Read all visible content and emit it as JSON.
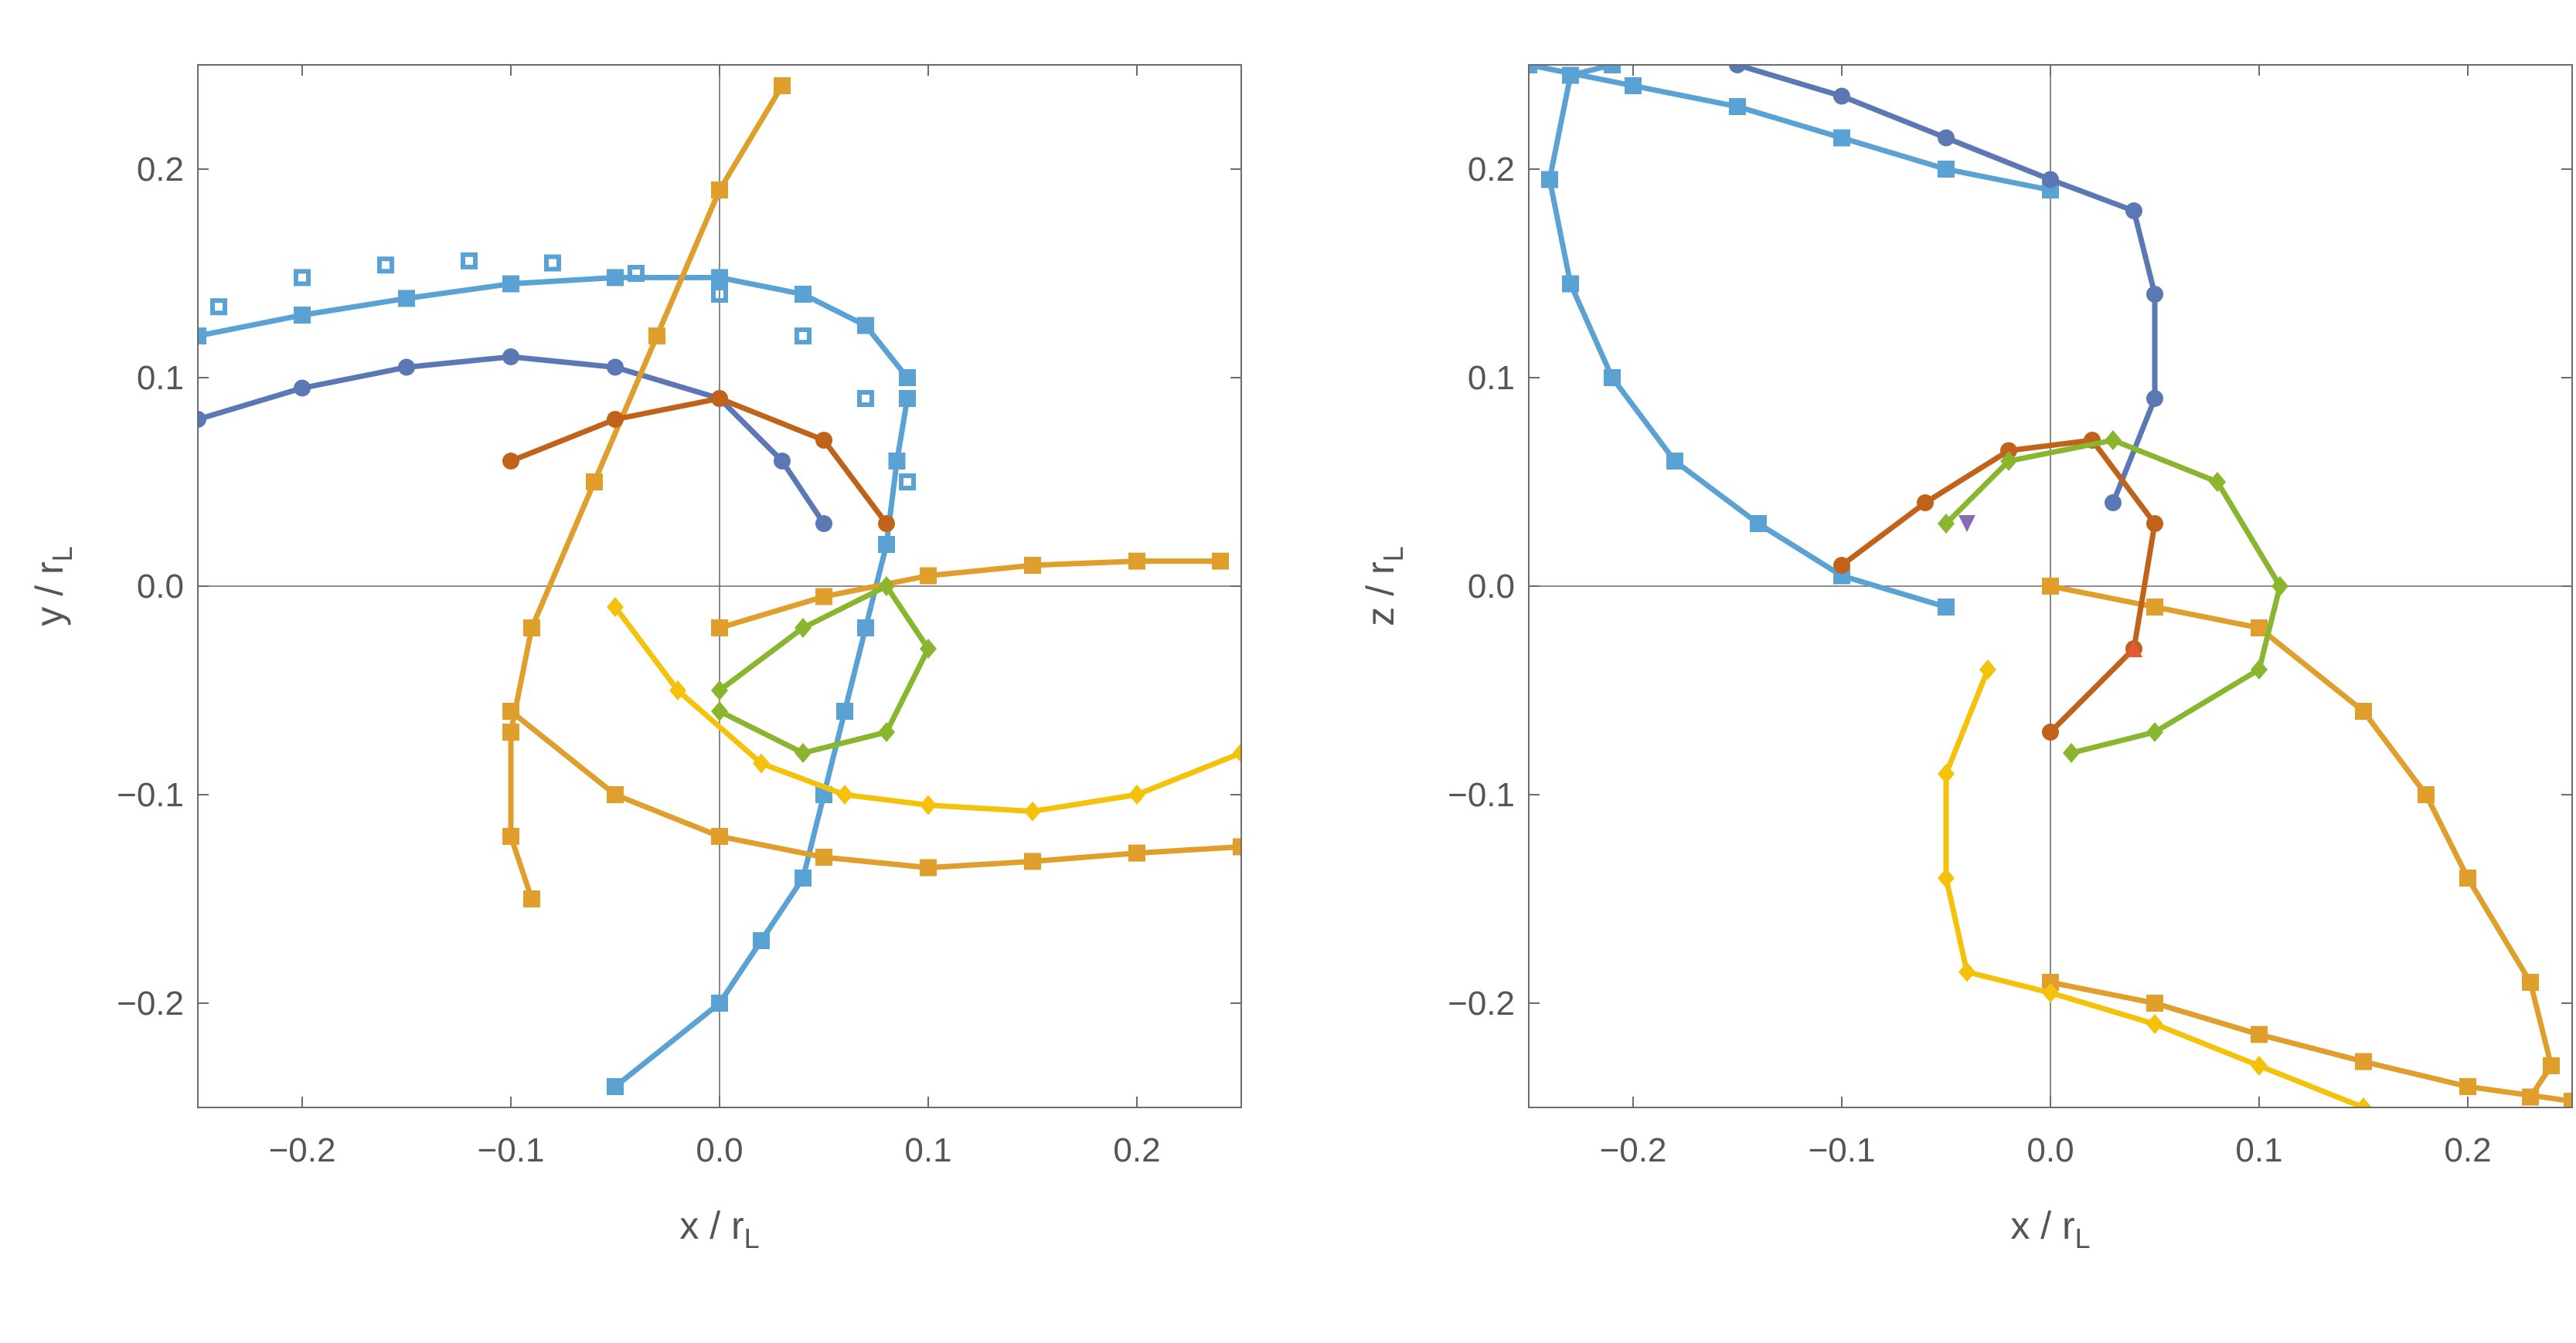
{
  "colors": {
    "light_blue": "#5aa2d3",
    "dark_blue": "#5b77b4",
    "orange": "#e09e2d",
    "yellow": "#f4c20b",
    "brown": "#c0621a",
    "green": "#8ab52f",
    "purple": "#8a6ab5",
    "red": "#e45a33"
  },
  "chart_data": [
    {
      "type": "scatter",
      "xlabel": "x / r",
      "xlabel_sub": "L",
      "ylabel": "y / r",
      "ylabel_sub": "L",
      "xlim": [
        -0.25,
        0.25
      ],
      "ylim": [
        -0.25,
        0.25
      ],
      "xticks": [
        -0.2,
        -0.1,
        0.0,
        0.1,
        0.2
      ],
      "yticks": [
        -0.2,
        -0.1,
        0.0,
        0.1,
        0.2
      ],
      "xtick_labels": [
        "−0.2",
        "−0.1",
        "0.0",
        "0.1",
        "0.2"
      ],
      "ytick_labels": [
        "−0.2",
        "−0.1",
        "0.0",
        "0.1",
        "0.2"
      ],
      "grid": false,
      "series": [
        {
          "color": "light_blue",
          "marker": "square",
          "line": true,
          "x": [
            -0.05,
            0.0,
            0.02,
            0.04,
            0.05,
            0.06,
            0.07,
            0.08,
            0.085,
            0.09
          ],
          "y": [
            -0.24,
            -0.2,
            -0.17,
            -0.14,
            -0.1,
            -0.06,
            -0.02,
            0.02,
            0.06,
            0.09
          ]
        },
        {
          "color": "light_blue",
          "marker": "square",
          "line": true,
          "x": [
            0.09,
            0.07,
            0.04,
            0.0,
            -0.05,
            -0.1,
            -0.15,
            -0.2,
            -0.25
          ],
          "y": [
            0.1,
            0.125,
            0.14,
            0.148,
            0.148,
            0.145,
            0.138,
            0.13,
            0.12
          ]
        },
        {
          "color": "light_blue",
          "marker": "square-open",
          "line": false,
          "x": [
            -0.24,
            -0.2,
            -0.16,
            -0.12,
            -0.08,
            -0.04,
            0.0,
            0.04,
            0.07,
            0.09
          ],
          "y": [
            0.134,
            0.148,
            0.154,
            0.156,
            0.155,
            0.15,
            0.14,
            0.12,
            0.09,
            0.05
          ]
        },
        {
          "color": "dark_blue",
          "marker": "circle",
          "line": true,
          "x": [
            -0.25,
            -0.2,
            -0.15,
            -0.1,
            -0.05,
            0.0,
            0.03,
            0.05
          ],
          "y": [
            0.08,
            0.095,
            0.105,
            0.11,
            0.105,
            0.09,
            0.06,
            0.03
          ]
        },
        {
          "color": "orange",
          "marker": "square",
          "line": true,
          "x": [
            0.03,
            0.0,
            -0.03,
            -0.06,
            -0.09,
            -0.1,
            -0.1,
            -0.09
          ],
          "y": [
            0.24,
            0.19,
            0.12,
            0.05,
            -0.02,
            -0.07,
            -0.12,
            -0.15
          ]
        },
        {
          "color": "orange",
          "marker": "square",
          "line": true,
          "x": [
            -0.1,
            -0.05,
            0.0,
            0.05,
            0.1,
            0.15,
            0.2,
            0.25
          ],
          "y": [
            -0.06,
            -0.1,
            -0.12,
            -0.13,
            -0.135,
            -0.132,
            -0.128,
            -0.125
          ]
        },
        {
          "color": "orange",
          "marker": "square",
          "line": true,
          "x": [
            0.0,
            0.05,
            0.1,
            0.15,
            0.2,
            0.24
          ],
          "y": [
            -0.02,
            -0.005,
            0.005,
            0.01,
            0.012,
            0.012
          ]
        },
        {
          "color": "yellow",
          "marker": "diamond",
          "line": true,
          "x": [
            -0.05,
            -0.02,
            0.02,
            0.06,
            0.1,
            0.15,
            0.2,
            0.25
          ],
          "y": [
            -0.01,
            -0.05,
            -0.085,
            -0.1,
            -0.105,
            -0.108,
            -0.1,
            -0.08
          ]
        },
        {
          "color": "brown",
          "marker": "circle",
          "line": true,
          "x": [
            -0.1,
            -0.05,
            0.0,
            0.05,
            0.08
          ],
          "y": [
            0.06,
            0.08,
            0.09,
            0.07,
            0.03
          ]
        },
        {
          "color": "green",
          "marker": "diamond",
          "line": true,
          "x": [
            0.0,
            0.04,
            0.08,
            0.1,
            0.08,
            0.04,
            0.0
          ],
          "y": [
            -0.05,
            -0.02,
            0.0,
            -0.03,
            -0.07,
            -0.08,
            -0.06
          ]
        }
      ]
    },
    {
      "type": "scatter",
      "xlabel": "x / r",
      "xlabel_sub": "L",
      "ylabel": "z / r",
      "ylabel_sub": "L",
      "xlim": [
        -0.25,
        0.25
      ],
      "ylim": [
        -0.25,
        0.25
      ],
      "xticks": [
        -0.2,
        -0.1,
        0.0,
        0.1,
        0.2
      ],
      "yticks": [
        -0.2,
        -0.1,
        0.0,
        0.1,
        0.2
      ],
      "xtick_labels": [
        "−0.2",
        "−0.1",
        "0.0",
        "0.1",
        "0.2"
      ],
      "ytick_labels": [
        "−0.2",
        "−0.1",
        "0.0",
        "0.1",
        "0.2"
      ],
      "grid": false,
      "series": [
        {
          "color": "light_blue",
          "marker": "square",
          "line": true,
          "x": [
            -0.05,
            -0.1,
            -0.14,
            -0.18,
            -0.21,
            -0.23,
            -0.24,
            -0.23,
            -0.21
          ],
          "y": [
            -0.01,
            0.005,
            0.03,
            0.06,
            0.1,
            0.145,
            0.195,
            0.245,
            0.25
          ]
        },
        {
          "color": "light_blue",
          "marker": "square",
          "line": true,
          "x": [
            -0.25,
            -0.2,
            -0.15,
            -0.1,
            -0.05,
            0.0
          ],
          "y": [
            0.25,
            0.24,
            0.23,
            0.215,
            0.2,
            0.19
          ]
        },
        {
          "color": "dark_blue",
          "marker": "circle",
          "line": true,
          "x": [
            -0.15,
            -0.1,
            -0.05,
            0.0,
            0.04,
            0.05,
            0.05,
            0.03
          ],
          "y": [
            0.25,
            0.235,
            0.215,
            0.195,
            0.18,
            0.14,
            0.09,
            0.04
          ]
        },
        {
          "color": "orange",
          "marker": "square",
          "line": true,
          "x": [
            0.0,
            0.05,
            0.1,
            0.15,
            0.18,
            0.2,
            0.23,
            0.24,
            0.23
          ],
          "y": [
            0.0,
            -0.01,
            -0.02,
            -0.06,
            -0.1,
            -0.14,
            -0.19,
            -0.23,
            -0.245
          ]
        },
        {
          "color": "orange",
          "marker": "square",
          "line": true,
          "x": [
            0.0,
            0.05,
            0.1,
            0.15,
            0.2,
            0.25
          ],
          "y": [
            -0.19,
            -0.2,
            -0.215,
            -0.228,
            -0.24,
            -0.247
          ]
        },
        {
          "color": "yellow",
          "marker": "diamond",
          "line": true,
          "x": [
            -0.03,
            -0.05,
            -0.05,
            -0.04,
            0.0,
            0.05,
            0.1,
            0.15
          ],
          "y": [
            -0.04,
            -0.09,
            -0.14,
            -0.185,
            -0.195,
            -0.21,
            -0.23,
            -0.25
          ]
        },
        {
          "color": "brown",
          "marker": "circle",
          "line": true,
          "x": [
            -0.1,
            -0.06,
            -0.02,
            0.02,
            0.05,
            0.04,
            0.0
          ],
          "y": [
            0.01,
            0.04,
            0.065,
            0.07,
            0.03,
            -0.03,
            -0.07
          ]
        },
        {
          "color": "green",
          "marker": "diamond",
          "line": true,
          "x": [
            -0.05,
            -0.02,
            0.03,
            0.08,
            0.11,
            0.1,
            0.05,
            0.01
          ],
          "y": [
            0.03,
            0.06,
            0.07,
            0.05,
            0.0,
            -0.04,
            -0.07,
            -0.08
          ]
        },
        {
          "color": "purple",
          "marker": "triangle-down",
          "line": false,
          "x": [
            -0.04
          ],
          "y": [
            0.03
          ]
        },
        {
          "color": "red",
          "marker": "triangle-up",
          "line": false,
          "x": [
            0.04
          ],
          "y": [
            -0.03
          ]
        }
      ]
    }
  ]
}
